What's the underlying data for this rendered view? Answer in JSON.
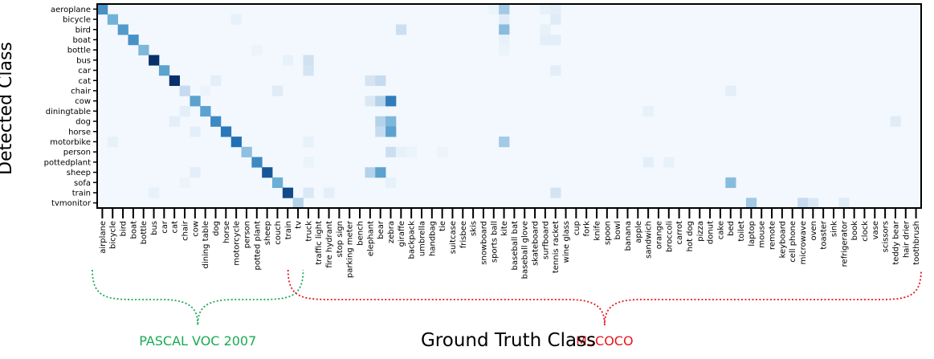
{
  "chart_data": {
    "type": "heatmap",
    "title": "",
    "xlabel": "Ground Truth Class",
    "ylabel": "Detected Class",
    "y_categories": [
      "aeroplane",
      "bicycle",
      "bird",
      "boat",
      "bottle",
      "bus",
      "car",
      "cat",
      "chair",
      "cow",
      "diningtable",
      "dog",
      "horse",
      "motorbike",
      "person",
      "pottedplant",
      "sheep",
      "sofa",
      "train",
      "tvmonitor"
    ],
    "x_categories": [
      "airplane",
      "bicycle",
      "bird",
      "boat",
      "bottle",
      "bus",
      "car",
      "cat",
      "chair",
      "cow",
      "dining table",
      "dog",
      "horse",
      "motorcycle",
      "person",
      "potted plant",
      "sheep",
      "couch",
      "train",
      "tv",
      "truck",
      "traffic light",
      "fire hydrant",
      "stop sign",
      "parking meter",
      "bench",
      "elephant",
      "bear",
      "zebra",
      "giraffe",
      "backpack",
      "umbrella",
      "handbag",
      "tie",
      "suitcase",
      "frisbee",
      "skis",
      "snowboard",
      "sports ball",
      "kite",
      "baseball bat",
      "baseball glove",
      "skateboard",
      "surfboard",
      "tennis racket",
      "wine glass",
      "cup",
      "fork",
      "knife",
      "spoon",
      "bowl",
      "banana",
      "apple",
      "sandwich",
      "orange",
      "broccoli",
      "carrot",
      "hot dog",
      "pizza",
      "donut",
      "cake",
      "bed",
      "toilet",
      "laptop",
      "mouse",
      "remote",
      "keyboard",
      "cell phone",
      "microwave",
      "oven",
      "toaster",
      "sink",
      "refrigerator",
      "book",
      "clock",
      "vase",
      "scissors",
      "teddy bear",
      "hair drier",
      "toothbrush"
    ],
    "diagonal": [
      0.62,
      0.48,
      0.58,
      0.62,
      0.45,
      1.0,
      0.55,
      1.0,
      0.25,
      0.55,
      0.55,
      0.65,
      0.72,
      0.75,
      0.4,
      0.65,
      0.85,
      0.5,
      0.9,
      0.3
    ],
    "off_diagonal": [
      {
        "row": 0,
        "col": 39,
        "value": 0.35
      },
      {
        "row": 0,
        "col": 38,
        "value": 0.06
      },
      {
        "row": 0,
        "col": 43,
        "value": 0.08
      },
      {
        "row": 0,
        "col": 44,
        "value": 0.1
      },
      {
        "row": 1,
        "col": 39,
        "value": 0.12
      },
      {
        "row": 1,
        "col": 44,
        "value": 0.12
      },
      {
        "row": 1,
        "col": 13,
        "value": 0.08
      },
      {
        "row": 2,
        "col": 29,
        "value": 0.22
      },
      {
        "row": 2,
        "col": 39,
        "value": 0.42
      },
      {
        "row": 2,
        "col": 43,
        "value": 0.08
      },
      {
        "row": 3,
        "col": 43,
        "value": 0.1
      },
      {
        "row": 3,
        "col": 44,
        "value": 0.1
      },
      {
        "row": 3,
        "col": 39,
        "value": 0.08
      },
      {
        "row": 4,
        "col": 15,
        "value": 0.06
      },
      {
        "row": 4,
        "col": 39,
        "value": 0.06
      },
      {
        "row": 5,
        "col": 20,
        "value": 0.2
      },
      {
        "row": 5,
        "col": 18,
        "value": 0.08
      },
      {
        "row": 6,
        "col": 20,
        "value": 0.18
      },
      {
        "row": 6,
        "col": 44,
        "value": 0.1
      },
      {
        "row": 7,
        "col": 11,
        "value": 0.1
      },
      {
        "row": 7,
        "col": 26,
        "value": 0.18
      },
      {
        "row": 7,
        "col": 27,
        "value": 0.25
      },
      {
        "row": 8,
        "col": 17,
        "value": 0.12
      },
      {
        "row": 8,
        "col": 61,
        "value": 0.1
      },
      {
        "row": 8,
        "col": 10,
        "value": 0.06
      },
      {
        "row": 9,
        "col": 26,
        "value": 0.15
      },
      {
        "row": 9,
        "col": 27,
        "value": 0.3
      },
      {
        "row": 9,
        "col": 28,
        "value": 0.7
      },
      {
        "row": 10,
        "col": 8,
        "value": 0.1
      },
      {
        "row": 10,
        "col": 53,
        "value": 0.08
      },
      {
        "row": 11,
        "col": 27,
        "value": 0.3
      },
      {
        "row": 11,
        "col": 28,
        "value": 0.45
      },
      {
        "row": 11,
        "col": 7,
        "value": 0.1
      },
      {
        "row": 11,
        "col": 77,
        "value": 0.12
      },
      {
        "row": 12,
        "col": 27,
        "value": 0.25
      },
      {
        "row": 12,
        "col": 28,
        "value": 0.55
      },
      {
        "row": 12,
        "col": 9,
        "value": 0.1
      },
      {
        "row": 13,
        "col": 1,
        "value": 0.08
      },
      {
        "row": 13,
        "col": 39,
        "value": 0.35
      },
      {
        "row": 13,
        "col": 20,
        "value": 0.08
      },
      {
        "row": 14,
        "col": 28,
        "value": 0.22
      },
      {
        "row": 14,
        "col": 29,
        "value": 0.08
      },
      {
        "row": 14,
        "col": 30,
        "value": 0.06
      },
      {
        "row": 14,
        "col": 33,
        "value": 0.06
      },
      {
        "row": 15,
        "col": 53,
        "value": 0.1
      },
      {
        "row": 15,
        "col": 55,
        "value": 0.08
      },
      {
        "row": 15,
        "col": 20,
        "value": 0.06
      },
      {
        "row": 16,
        "col": 26,
        "value": 0.3
      },
      {
        "row": 16,
        "col": 27,
        "value": 0.55
      },
      {
        "row": 16,
        "col": 9,
        "value": 0.1
      },
      {
        "row": 17,
        "col": 61,
        "value": 0.42
      },
      {
        "row": 17,
        "col": 28,
        "value": 0.08
      },
      {
        "row": 17,
        "col": 8,
        "value": 0.06
      },
      {
        "row": 18,
        "col": 20,
        "value": 0.15
      },
      {
        "row": 18,
        "col": 22,
        "value": 0.1
      },
      {
        "row": 18,
        "col": 44,
        "value": 0.18
      },
      {
        "row": 18,
        "col": 5,
        "value": 0.08
      },
      {
        "row": 19,
        "col": 63,
        "value": 0.35
      },
      {
        "row": 19,
        "col": 68,
        "value": 0.25
      },
      {
        "row": 19,
        "col": 69,
        "value": 0.15
      },
      {
        "row": 19,
        "col": 72,
        "value": 0.12
      }
    ],
    "grid": false,
    "colormap": "Blues"
  },
  "groups": [
    {
      "label": "PASCAL VOC 2007",
      "color": "#1aaa55",
      "start_col": 0,
      "end_col": 19
    },
    {
      "label": "MSCOCO",
      "color": "#e8141e",
      "start_col": 19,
      "end_col": 79
    }
  ]
}
